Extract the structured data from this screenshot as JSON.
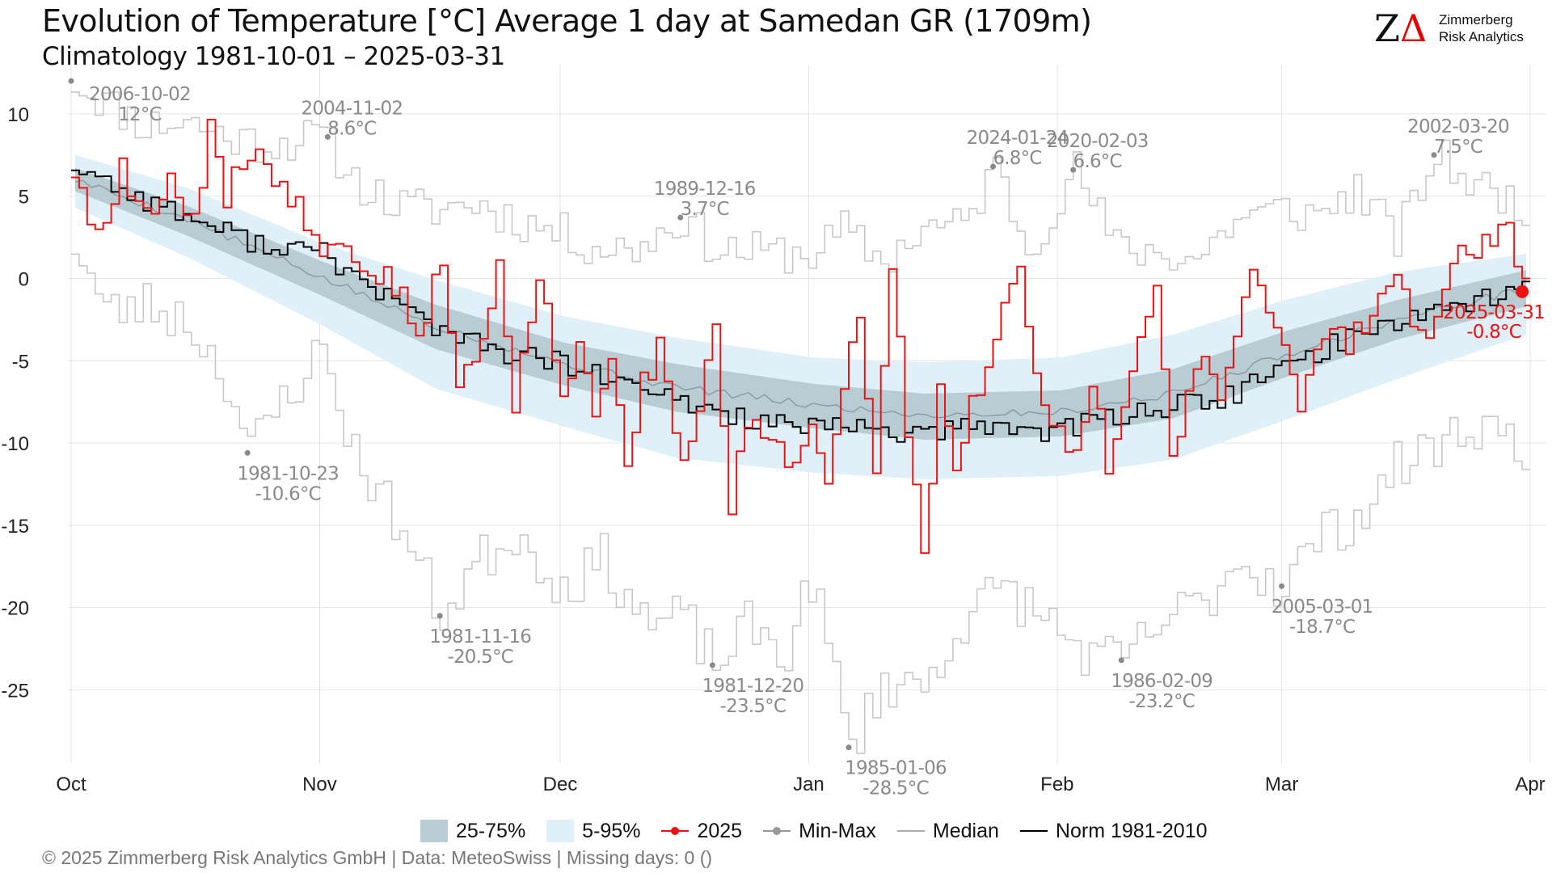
{
  "header": {
    "title": "Evolution of Temperature [°C] Average 1 day at Samedan  GR (1709m)",
    "subtitle": "Climatology 1981-10-01 – 2025-03-31"
  },
  "logo": {
    "mark_z": "Z",
    "mark_delta": "Δ",
    "line1": "Zimmerberg",
    "line2": "Risk Analytics"
  },
  "legend": {
    "iqr": "25-75%",
    "p5_95": "5-95%",
    "current": "2025",
    "minmax": "Min-Max",
    "median": "Median",
    "norm": "Norm 1981-2010"
  },
  "footer": "©  2025 Zimmerberg Risk Analytics GmbH | Data: MeteoSwiss | Missing days: 0 ()",
  "colors": {
    "current": "#ee1111",
    "norm": "#000000",
    "median": "#8a9499",
    "minmax": "#c8c8c8",
    "iqr_band": "#b8cdd3",
    "p5_95_band": "#dff0f8",
    "annotation": "#8a8a8a"
  },
  "chart_data": {
    "type": "line",
    "x_axis": {
      "min": "2024-10-01",
      "max": "2025-04-01",
      "ticks": [
        "Oct",
        "Nov",
        "Dec",
        "Jan",
        "Feb",
        "Mar",
        "Apr"
      ],
      "tick_dates": [
        "2024-10-01",
        "2024-11-01",
        "2024-12-01",
        "2025-01-01",
        "2025-02-01",
        "2025-03-01",
        "2025-04-01"
      ]
    },
    "y_axis": {
      "min": -29.5,
      "max": 12.5,
      "ticks": [
        10,
        5,
        0,
        -5,
        -10,
        -15,
        -20,
        -25
      ]
    },
    "grid": true,
    "legend_position": "bottom",
    "series_keypoints": {
      "median": [
        [
          "2024-10-01",
          6.0
        ],
        [
          "2024-10-15",
          3.6
        ],
        [
          "2024-11-01",
          0.0
        ],
        [
          "2024-11-15",
          -2.9
        ],
        [
          "2024-12-01",
          -5.2
        ],
        [
          "2024-12-15",
          -6.6
        ],
        [
          "2025-01-01",
          -7.7
        ],
        [
          "2025-01-15",
          -8.3
        ],
        [
          "2025-02-01",
          -8.1
        ],
        [
          "2025-02-15",
          -7.0
        ],
        [
          "2025-03-01",
          -4.6
        ],
        [
          "2025-03-15",
          -2.5
        ],
        [
          "2025-03-31",
          -0.6
        ]
      ],
      "p25": [
        [
          "2024-10-01",
          5.3
        ],
        [
          "2024-10-15",
          2.6
        ],
        [
          "2024-11-01",
          -1.1
        ],
        [
          "2024-11-15",
          -4.3
        ],
        [
          "2024-12-01",
          -6.5
        ],
        [
          "2024-12-15",
          -8.1
        ],
        [
          "2025-01-01",
          -9.1
        ],
        [
          "2025-01-15",
          -9.8
        ],
        [
          "2025-02-01",
          -9.6
        ],
        [
          "2025-02-15",
          -8.5
        ],
        [
          "2025-03-01",
          -6.0
        ],
        [
          "2025-03-15",
          -3.7
        ],
        [
          "2025-03-31",
          -1.7
        ]
      ],
      "p75": [
        [
          "2024-10-01",
          6.7
        ],
        [
          "2024-10-15",
          4.4
        ],
        [
          "2024-11-01",
          1.0
        ],
        [
          "2024-11-15",
          -1.6
        ],
        [
          "2024-12-01",
          -3.9
        ],
        [
          "2024-12-15",
          -5.2
        ],
        [
          "2025-01-01",
          -6.4
        ],
        [
          "2025-01-15",
          -7.0
        ],
        [
          "2025-02-01",
          -6.8
        ],
        [
          "2025-02-15",
          -5.5
        ],
        [
          "2025-03-01",
          -3.2
        ],
        [
          "2025-03-15",
          -1.3
        ],
        [
          "2025-03-31",
          0.5
        ]
      ],
      "p5": [
        [
          "2024-10-01",
          4.3
        ],
        [
          "2024-10-15",
          1.3
        ],
        [
          "2024-11-01",
          -2.9
        ],
        [
          "2024-11-15",
          -6.7
        ],
        [
          "2024-12-01",
          -9.0
        ],
        [
          "2024-12-15",
          -10.9
        ],
        [
          "2025-01-01",
          -11.8
        ],
        [
          "2025-01-15",
          -12.2
        ],
        [
          "2025-02-01",
          -12.0
        ],
        [
          "2025-02-15",
          -11.0
        ],
        [
          "2025-03-01",
          -8.6
        ],
        [
          "2025-03-15",
          -6.1
        ],
        [
          "2025-03-31",
          -3.4
        ]
      ],
      "p95": [
        [
          "2024-10-01",
          7.5
        ],
        [
          "2024-10-15",
          5.5
        ],
        [
          "2024-11-01",
          2.1
        ],
        [
          "2024-11-15",
          -0.1
        ],
        [
          "2024-12-01",
          -2.3
        ],
        [
          "2024-12-15",
          -3.6
        ],
        [
          "2025-01-01",
          -4.8
        ],
        [
          "2025-01-15",
          -5.1
        ],
        [
          "2025-02-01",
          -4.8
        ],
        [
          "2025-02-15",
          -3.4
        ],
        [
          "2025-03-01",
          -1.3
        ],
        [
          "2025-03-15",
          0.4
        ],
        [
          "2025-03-31",
          1.5
        ]
      ],
      "norm": [
        [
          "2024-10-01",
          6.9
        ],
        [
          "2024-10-08",
          5.2
        ],
        [
          "2024-10-15",
          3.8
        ],
        [
          "2024-10-22",
          2.4
        ],
        [
          "2024-11-01",
          1.5
        ],
        [
          "2024-11-08",
          -0.8
        ],
        [
          "2024-11-15",
          -2.9
        ],
        [
          "2024-11-22",
          -4.4
        ],
        [
          "2024-12-01",
          -5.2
        ],
        [
          "2024-12-08",
          -6.4
        ],
        [
          "2024-12-15",
          -7.4
        ],
        [
          "2024-12-22",
          -8.3
        ],
        [
          "2025-01-01",
          -9.2
        ],
        [
          "2025-01-08",
          -9.0
        ],
        [
          "2025-01-15",
          -9.6
        ],
        [
          "2025-01-22",
          -8.9
        ],
        [
          "2025-02-01",
          -9.3
        ],
        [
          "2025-02-08",
          -8.3
        ],
        [
          "2025-02-15",
          -7.8
        ],
        [
          "2025-02-22",
          -7.2
        ],
        [
          "2025-03-01",
          -5.4
        ],
        [
          "2025-03-08",
          -3.8
        ],
        [
          "2025-03-15",
          -2.5
        ],
        [
          "2025-03-22",
          -1.6
        ],
        [
          "2025-03-31",
          -0.6
        ]
      ],
      "2025": [
        [
          "2024-10-01",
          6.4
        ],
        [
          "2024-10-04",
          2.3
        ],
        [
          "2024-10-07",
          6.5
        ],
        [
          "2024-10-10",
          3.4
        ],
        [
          "2024-10-13",
          6.2
        ],
        [
          "2024-10-16",
          3.5
        ],
        [
          "2024-10-18",
          8.9
        ],
        [
          "2024-10-20",
          4.6
        ],
        [
          "2024-10-22",
          7.4
        ],
        [
          "2024-10-25",
          6.8
        ],
        [
          "2024-10-28",
          5.2
        ],
        [
          "2024-10-30",
          3.5
        ],
        [
          "2024-11-01",
          2.2
        ],
        [
          "2024-11-03",
          2.8
        ],
        [
          "2024-11-05",
          1.5
        ],
        [
          "2024-11-08",
          0.2
        ],
        [
          "2024-11-11",
          -0.8
        ],
        [
          "2024-11-13",
          -3.4
        ],
        [
          "2024-11-16",
          1.0
        ],
        [
          "2024-11-18",
          -6.7
        ],
        [
          "2024-11-21",
          -4.0
        ],
        [
          "2024-11-23",
          1.5
        ],
        [
          "2024-11-25",
          -7.6
        ],
        [
          "2024-11-28",
          -0.3
        ],
        [
          "2024-12-01",
          -6.5
        ],
        [
          "2024-12-03",
          -3.9
        ],
        [
          "2024-12-05",
          -8.8
        ],
        [
          "2024-12-07",
          -4.5
        ],
        [
          "2024-12-09",
          -11.2
        ],
        [
          "2024-12-11",
          -6.5
        ],
        [
          "2024-12-13",
          -4.3
        ],
        [
          "2024-12-16",
          -11.8
        ],
        [
          "2024-12-18",
          -7.7
        ],
        [
          "2024-12-20",
          -3.3
        ],
        [
          "2024-12-22",
          -14.4
        ],
        [
          "2024-12-24",
          -8.4
        ],
        [
          "2024-12-26",
          -9.9
        ],
        [
          "2024-12-29",
          -11.3
        ],
        [
          "2025-01-01",
          -8.9
        ],
        [
          "2025-01-03",
          -12.9
        ],
        [
          "2025-01-05",
          -7.3
        ],
        [
          "2025-01-07",
          -1.9
        ],
        [
          "2025-01-09",
          -12.0
        ],
        [
          "2025-01-11",
          1.4
        ],
        [
          "2025-01-13",
          -9.5
        ],
        [
          "2025-01-15",
          -17.2
        ],
        [
          "2025-01-17",
          -6.8
        ],
        [
          "2025-01-19",
          -11.9
        ],
        [
          "2025-01-21",
          -7.7
        ],
        [
          "2025-01-23",
          -4.9
        ],
        [
          "2025-01-25",
          -1.6
        ],
        [
          "2025-01-27",
          0.6
        ],
        [
          "2025-01-29",
          -5.8
        ],
        [
          "2025-02-01",
          -9.7
        ],
        [
          "2025-02-03",
          -11.2
        ],
        [
          "2025-02-05",
          -5.9
        ],
        [
          "2025-02-07",
          -11.6
        ],
        [
          "2025-02-09",
          -7.8
        ],
        [
          "2025-02-11",
          -2.8
        ],
        [
          "2025-02-13",
          -0.2
        ],
        [
          "2025-02-15",
          -11.6
        ],
        [
          "2025-02-17",
          -6.6
        ],
        [
          "2025-02-19",
          -5.2
        ],
        [
          "2025-02-21",
          -7.9
        ],
        [
          "2025-02-23",
          -3.2
        ],
        [
          "2025-02-25",
          0.7
        ],
        [
          "2025-02-27",
          -1.6
        ],
        [
          "2025-03-01",
          -4.0
        ],
        [
          "2025-03-03",
          -7.4
        ],
        [
          "2025-03-05",
          -4.3
        ],
        [
          "2025-03-07",
          -2.6
        ],
        [
          "2025-03-09",
          -4.1
        ],
        [
          "2025-03-11",
          -2.7
        ],
        [
          "2025-03-13",
          -0.2
        ],
        [
          "2025-03-15",
          0.6
        ],
        [
          "2025-03-17",
          -3.5
        ],
        [
          "2025-03-19",
          -4.3
        ],
        [
          "2025-03-21",
          -1.4
        ],
        [
          "2025-03-23",
          1.7
        ],
        [
          "2025-03-25",
          1.3
        ],
        [
          "2025-03-27",
          2.4
        ],
        [
          "2025-03-29",
          3.4
        ],
        [
          "2025-03-31",
          -0.8
        ]
      ],
      "max": [
        [
          "2024-10-01",
          12.0
        ],
        [
          "2024-10-05",
          10.7
        ],
        [
          "2024-10-10",
          9.3
        ],
        [
          "2024-10-15",
          9.6
        ],
        [
          "2024-10-20",
          8.6
        ],
        [
          "2024-10-25",
          8.2
        ],
        [
          "2024-11-01",
          8.6
        ],
        [
          "2024-11-05",
          6.0
        ],
        [
          "2024-11-10",
          4.4
        ],
        [
          "2024-11-15",
          4.2
        ],
        [
          "2024-11-20",
          4.6
        ],
        [
          "2024-11-25",
          3.6
        ],
        [
          "2024-12-01",
          2.7
        ],
        [
          "2024-12-05",
          1.9
        ],
        [
          "2024-12-10",
          1.8
        ],
        [
          "2024-12-16",
          3.7
        ],
        [
          "2024-12-20",
          1.8
        ],
        [
          "2024-12-25",
          1.6
        ],
        [
          "2025-01-01",
          1.5
        ],
        [
          "2025-01-05",
          2.9
        ],
        [
          "2025-01-10",
          1.0
        ],
        [
          "2025-01-15",
          3.1
        ],
        [
          "2025-01-20",
          3.2
        ],
        [
          "2025-01-24",
          6.8
        ],
        [
          "2025-01-28",
          1.8
        ],
        [
          "2025-02-03",
          6.6
        ],
        [
          "2025-02-08",
          1.9
        ],
        [
          "2025-02-13",
          1.6
        ],
        [
          "2025-02-18",
          1.2
        ],
        [
          "2025-02-23",
          3.6
        ],
        [
          "2025-03-01",
          4.2
        ],
        [
          "2025-03-05",
          3.8
        ],
        [
          "2025-03-10",
          5.4
        ],
        [
          "2025-03-15",
          2.4
        ],
        [
          "2025-03-20",
          7.5
        ],
        [
          "2025-03-25",
          5.6
        ],
        [
          "2025-03-31",
          4.5
        ]
      ],
      "min": [
        [
          "2024-10-01",
          2.3
        ],
        [
          "2024-10-05",
          -2.1
        ],
        [
          "2024-10-10",
          -1.6
        ],
        [
          "2024-10-15",
          -2.5
        ],
        [
          "2024-10-20",
          -6.0
        ],
        [
          "2024-10-23",
          -10.6
        ],
        [
          "2024-10-27",
          -7.4
        ],
        [
          "2024-11-01",
          -4.3
        ],
        [
          "2024-11-05",
          -10.6
        ],
        [
          "2024-11-10",
          -14.5
        ],
        [
          "2024-11-16",
          -20.5
        ],
        [
          "2024-11-20",
          -17.4
        ],
        [
          "2024-11-25",
          -15.4
        ],
        [
          "2024-12-01",
          -18.8
        ],
        [
          "2024-12-06",
          -17.1
        ],
        [
          "2024-12-12",
          -21.1
        ],
        [
          "2024-12-16",
          -20.6
        ],
        [
          "2024-12-20",
          -23.5
        ],
        [
          "2024-12-24",
          -21.2
        ],
        [
          "2024-12-29",
          -22.7
        ],
        [
          "2025-01-01",
          -18.2
        ],
        [
          "2025-01-06",
          -28.5
        ],
        [
          "2025-01-10",
          -24.5
        ],
        [
          "2025-01-15",
          -24.8
        ],
        [
          "2025-01-20",
          -20.7
        ],
        [
          "2025-01-25",
          -18.8
        ],
        [
          "2025-02-01",
          -21.4
        ],
        [
          "2025-02-05",
          -23.2
        ],
        [
          "2025-02-09",
          -23.2
        ],
        [
          "2025-02-14",
          -20.8
        ],
        [
          "2025-02-19",
          -19.7
        ],
        [
          "2025-02-23",
          -17.1
        ],
        [
          "2025-03-01",
          -18.7
        ],
        [
          "2025-03-05",
          -15.8
        ],
        [
          "2025-03-10",
          -14.5
        ],
        [
          "2025-03-15",
          -11.5
        ],
        [
          "2025-03-20",
          -10.1
        ],
        [
          "2025-03-25",
          -8.8
        ],
        [
          "2025-03-31",
          -10.2
        ]
      ]
    },
    "annotations": [
      {
        "kind": "max",
        "date": "2006-10-02",
        "value": "12°C",
        "x": "2024-10-01",
        "y": 12.0
      },
      {
        "kind": "max",
        "date": "2004-11-02",
        "value": "8.6°C",
        "x": "2024-11-02",
        "y": 8.6
      },
      {
        "kind": "max",
        "date": "1989-12-16",
        "value": "3.7°C",
        "x": "2024-12-16",
        "y": 3.7
      },
      {
        "kind": "max",
        "date": "2024-01-24",
        "value": "6.8°C",
        "x": "2025-01-24",
        "y": 6.8
      },
      {
        "kind": "max",
        "date": "2020-02-03",
        "value": "6.6°C",
        "x": "2025-02-03",
        "y": 6.6
      },
      {
        "kind": "max",
        "date": "2002-03-20",
        "value": "7.5°C",
        "x": "2025-03-20",
        "y": 7.5
      },
      {
        "kind": "min",
        "date": "1981-10-23",
        "value": "-10.6°C",
        "x": "2024-10-23",
        "y": -10.6
      },
      {
        "kind": "min",
        "date": "1981-11-16",
        "value": "-20.5°C",
        "x": "2024-11-16",
        "y": -20.5
      },
      {
        "kind": "min",
        "date": "1981-12-20",
        "value": "-23.5°C",
        "x": "2024-12-20",
        "y": -23.5
      },
      {
        "kind": "min",
        "date": "1985-01-06",
        "value": "-28.5°C",
        "x": "2025-01-06",
        "y": -28.5
      },
      {
        "kind": "min",
        "date": "1986-02-09",
        "value": "-23.2°C",
        "x": "2025-02-09",
        "y": -23.2
      },
      {
        "kind": "min",
        "date": "2005-03-01",
        "value": "-18.7°C",
        "x": "2025-03-01",
        "y": -18.7
      },
      {
        "kind": "current",
        "date": "2025-03-31",
        "value": "-0.8°C",
        "x": "2025-03-31",
        "y": -0.8
      }
    ]
  }
}
